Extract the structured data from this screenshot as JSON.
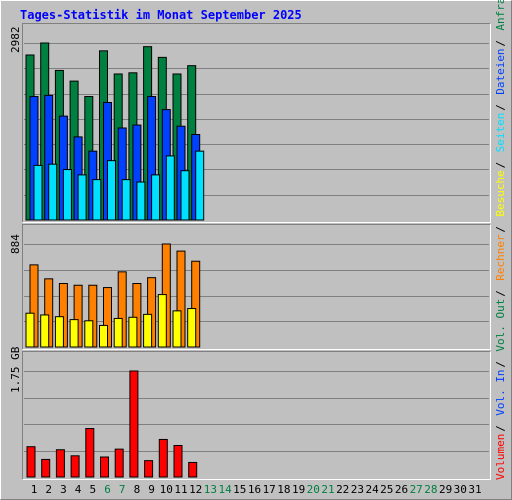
{
  "chart_data": {
    "type": "bar",
    "title": "Tages-Statistik im Monat September 2025",
    "colors": {
      "outer_bg": "#C0C0C0",
      "plot_bg": "#C0C0C0",
      "title": "#0000FF",
      "grid": "#808080",
      "hits": "#008040",
      "files": "#0040FF",
      "pages": "#00E0FF",
      "visits": "#FFFF00",
      "sites": "#FF8000",
      "kbytes_in": "#FF0000",
      "kbytes_out": "#008040",
      "day_active": "#000000",
      "day_inactive": "#008040"
    },
    "days": [
      "1",
      "2",
      "3",
      "4",
      "5",
      "6",
      "7",
      "8",
      "9",
      "10",
      "11",
      "12",
      "13",
      "14",
      "15",
      "16",
      "17",
      "18",
      "19",
      "20",
      "21",
      "22",
      "23",
      "24",
      "25",
      "26",
      "27",
      "28",
      "29",
      "30",
      "31"
    ],
    "day_weekend": [
      false,
      false,
      false,
      false,
      false,
      true,
      true,
      false,
      false,
      false,
      false,
      false,
      true,
      true,
      false,
      false,
      false,
      false,
      false,
      true,
      true,
      false,
      false,
      false,
      false,
      false,
      true,
      true,
      false,
      false,
      false
    ],
    "panels": [
      {
        "id": "requests",
        "ymax_label": "2982",
        "ymax": 2982,
        "series": [
          {
            "key": "hits",
            "values": [
              2780,
              2982,
              2520,
              2340,
              2080,
              2850,
              2460,
              2480,
              2920,
              2740,
              2460,
              2600,
              0,
              0,
              0,
              0,
              0,
              0,
              0,
              0,
              0,
              0,
              0,
              0,
              0,
              0,
              0,
              0,
              0,
              0,
              0
            ]
          },
          {
            "key": "files",
            "values": [
              2080,
              2100,
              1750,
              1400,
              1160,
              1980,
              1550,
              1600,
              2080,
              1860,
              1580,
              1440,
              0,
              0,
              0,
              0,
              0,
              0,
              0,
              0,
              0,
              0,
              0,
              0,
              0,
              0,
              0,
              0,
              0,
              0,
              0
            ]
          },
          {
            "key": "pages",
            "values": [
              920,
              940,
              850,
              760,
              680,
              1000,
              680,
              640,
              760,
              1080,
              830,
              1160,
              0,
              0,
              0,
              0,
              0,
              0,
              0,
              0,
              0,
              0,
              0,
              0,
              0,
              0,
              0,
              0,
              0,
              0,
              0
            ]
          }
        ]
      },
      {
        "id": "visits",
        "ymax_label": "884",
        "ymax": 884,
        "series": [
          {
            "key": "sites",
            "values": [
              705,
              585,
              545,
              530,
              530,
              510,
              645,
              545,
              595,
              884,
              823,
              736,
              0,
              0,
              0,
              0,
              0,
              0,
              0,
              0,
              0,
              0,
              0,
              0,
              0,
              0,
              0,
              0,
              0,
              0,
              0
            ]
          },
          {
            "key": "visits",
            "values": [
              290,
              275,
              260,
              235,
              225,
              185,
              245,
              255,
              280,
              450,
              310,
              330,
              0,
              0,
              0,
              0,
              0,
              0,
              0,
              0,
              0,
              0,
              0,
              0,
              0,
              0,
              0,
              0,
              0,
              0,
              0
            ]
          }
        ]
      },
      {
        "id": "volume",
        "ymax_label": "1.75 GB",
        "ymax": 1.75,
        "series": [
          {
            "key": "kbytes_in",
            "values": [
              0.5,
              0.29,
              0.45,
              0.35,
              0.8,
              0.33,
              0.46,
              1.75,
              0.27,
              0.62,
              0.52,
              0.24,
              0,
              0,
              0,
              0,
              0,
              0,
              0,
              0,
              0,
              0,
              0,
              0,
              0,
              0,
              0,
              0,
              0,
              0,
              0
            ]
          }
        ]
      }
    ],
    "legend": [
      {
        "label": "Volumen",
        "color_key": "kbytes_in"
      },
      {
        "label": "Vol. In",
        "color_key": "files"
      },
      {
        "label": "Vol. Out",
        "color_key": "kbytes_out"
      },
      {
        "label": "Rechner",
        "color_key": "sites"
      },
      {
        "label": "Besuche",
        "color_key": "visits"
      },
      {
        "label": "Seiten",
        "color_key": "pages"
      },
      {
        "label": "Dateien",
        "color_key": "files"
      },
      {
        "label": "Anfragen",
        "color_key": "hits"
      }
    ]
  }
}
